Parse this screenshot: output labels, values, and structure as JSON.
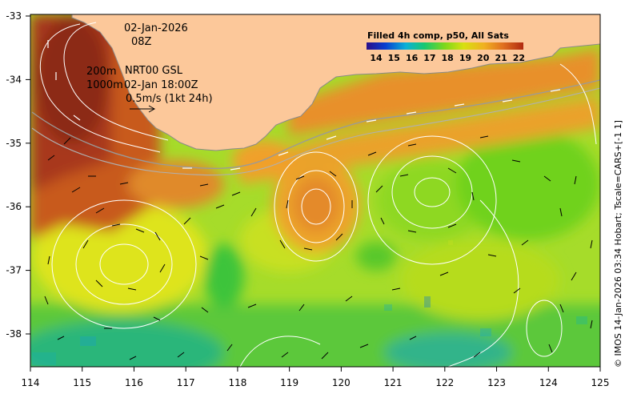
{
  "product": {
    "date": "02-Jan-2026",
    "time": "08Z",
    "isobath_labels": [
      "200m",
      "1000m"
    ],
    "altimetry": "NRT00 GSL",
    "altimetry_time": "02-Jan 18:00Z",
    "vector_scale": "0.5m/s (1kt 24h)",
    "credit": "© IMOS 14-Jan-2026 03:34 Hobart; Tscale=CARS+[-1 1]"
  },
  "colorbar": {
    "title": "Filled 4h comp, p50, All Sats",
    "labels": [
      "14",
      "15",
      "16",
      "17",
      "18",
      "19",
      "20",
      "21",
      "22"
    ],
    "colors": [
      "#2a0f8a",
      "#0a3fd0",
      "#0ab0d8",
      "#18c870",
      "#7ed81a",
      "#d8e010",
      "#f0b020",
      "#e07020",
      "#b02a10"
    ]
  },
  "axes": {
    "x_ticks": [
      "114",
      "115",
      "116",
      "117",
      "118",
      "119",
      "120",
      "121",
      "122",
      "123",
      "124",
      "125"
    ],
    "y_ticks": [
      "-33",
      "-34",
      "-35",
      "-36",
      "-37",
      "-38"
    ]
  },
  "colors": {
    "land": "#fcc89a",
    "coast_outline": "#8a8a8a",
    "contour": "#ffffff",
    "arrow": "#000000",
    "arrow_inshore": "#ffffff"
  }
}
